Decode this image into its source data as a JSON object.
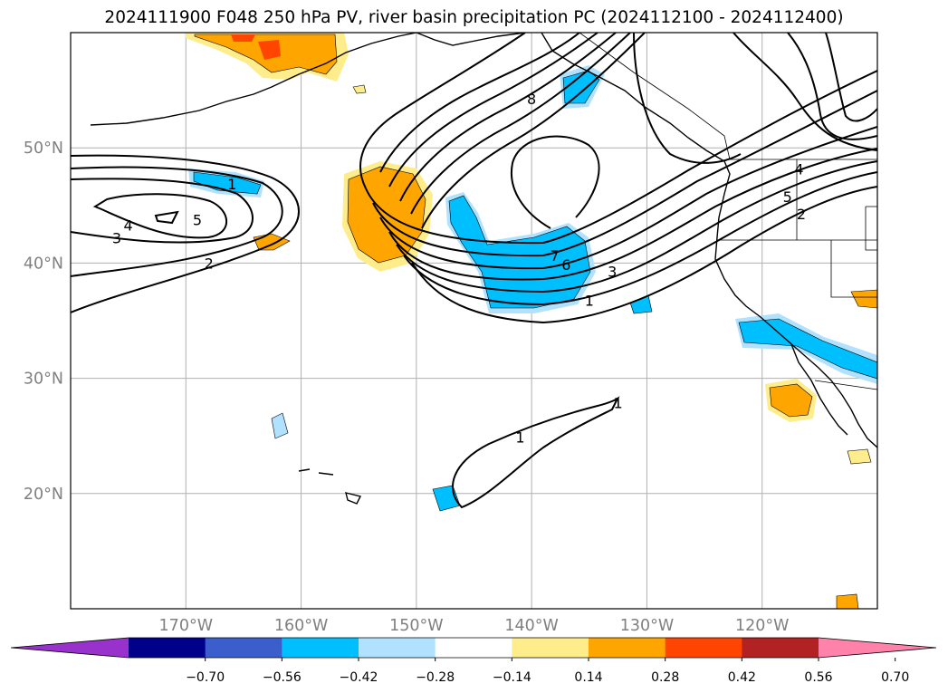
{
  "title": "2024111900 F048 250 hPa PV, river basin precipitation PC (2024112100 - 2024112400)",
  "map": {
    "lon_range": [
      -180,
      -110
    ],
    "lat_range": [
      10,
      60
    ],
    "lon_ticks": [
      {
        "value": -170,
        "label": "170°W"
      },
      {
        "value": -160,
        "label": "160°W"
      },
      {
        "value": -150,
        "label": "150°W"
      },
      {
        "value": -140,
        "label": "140°W"
      },
      {
        "value": -130,
        "label": "130°W"
      },
      {
        "value": -120,
        "label": "120°W"
      }
    ],
    "lat_ticks": [
      {
        "value": 20,
        "label": "20°N"
      },
      {
        "value": 30,
        "label": "30°N"
      },
      {
        "value": 40,
        "label": "40°N"
      },
      {
        "value": 50,
        "label": "50°N"
      }
    ],
    "grid": true,
    "pv_contour_labels": [
      {
        "text": "1",
        "lon": -166,
        "lat": 46.8
      },
      {
        "text": "3",
        "lon": -176,
        "lat": 42.1
      },
      {
        "text": "4",
        "lon": -175,
        "lat": 43.2
      },
      {
        "text": "5",
        "lon": -169,
        "lat": 43.7
      },
      {
        "text": "2",
        "lon": -168,
        "lat": 39.9
      },
      {
        "text": "8",
        "lon": -140,
        "lat": 54.2
      },
      {
        "text": "7",
        "lon": -138,
        "lat": 40.6
      },
      {
        "text": "6",
        "lon": -137,
        "lat": 39.8
      },
      {
        "text": "3",
        "lon": -133,
        "lat": 39.2
      },
      {
        "text": "1",
        "lon": -135,
        "lat": 36.7
      },
      {
        "text": "5",
        "lon": -117.8,
        "lat": 45.7
      },
      {
        "text": "2",
        "lon": -116.6,
        "lat": 44.2
      },
      {
        "text": "4",
        "lon": -116.8,
        "lat": 48.1
      },
      {
        "text": "1",
        "lon": -141,
        "lat": 24.8
      },
      {
        "text": "1",
        "lon": -132.5,
        "lat": 27.8
      }
    ]
  },
  "colorbar": {
    "boundaries": [
      "−0.70",
      "−0.56",
      "−0.42",
      "−0.28",
      "−0.14",
      "0.14",
      "0.28",
      "0.42",
      "0.56",
      "0.70"
    ],
    "colors": [
      "#9932CC",
      "#00008B",
      "#3A5FCD",
      "#00BFFF",
      "#B0E2FF",
      "#FFFFFF",
      "#FFEC8B",
      "#FFA500",
      "#FF4500",
      "#B22222",
      "#FF82AB"
    ]
  }
}
